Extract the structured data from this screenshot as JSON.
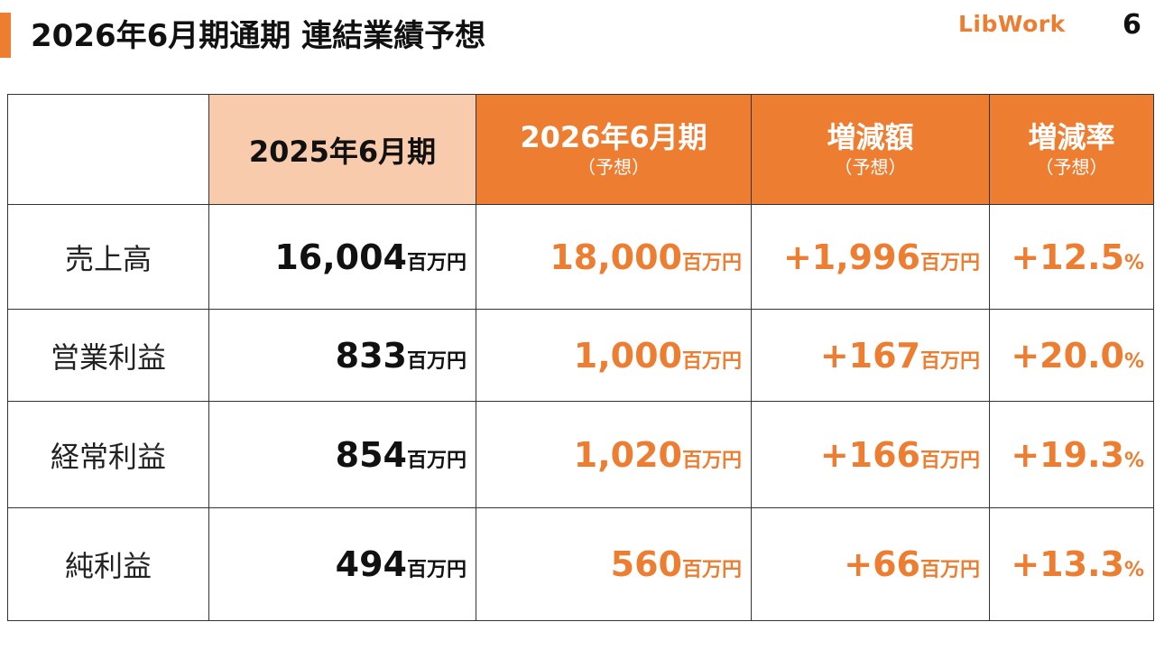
{
  "header": {
    "title": "2026年6月期通期 連結業績予想",
    "logo_text": "LibWork",
    "page_number": "6"
  },
  "colors": {
    "accent": "#ED7D31",
    "header_light": "#F8CBAD",
    "text": "#111111"
  },
  "table": {
    "columns": [
      {
        "main": "2025年6月期",
        "sub": ""
      },
      {
        "main": "2026年6月期",
        "sub": "（予想）"
      },
      {
        "main": "増減額",
        "sub": "（予想）"
      },
      {
        "main": "増減率",
        "sub": "（予想）"
      }
    ],
    "rows": [
      {
        "label": "売上高",
        "prior": "16,004",
        "forecast": "18,000",
        "change": "+1,996",
        "rate": "+12.5"
      },
      {
        "label": "営業利益",
        "prior": "833",
        "forecast": "1,000",
        "change": "+167",
        "rate": "+20.0"
      },
      {
        "label": "経常利益",
        "prior": "854",
        "forecast": "1,020",
        "change": "+166",
        "rate": "+19.3"
      },
      {
        "label": "純利益",
        "prior": "494",
        "forecast": "560",
        "change": "+66",
        "rate": "+13.3"
      }
    ],
    "unit": "百万円",
    "pct_unit": "%"
  }
}
